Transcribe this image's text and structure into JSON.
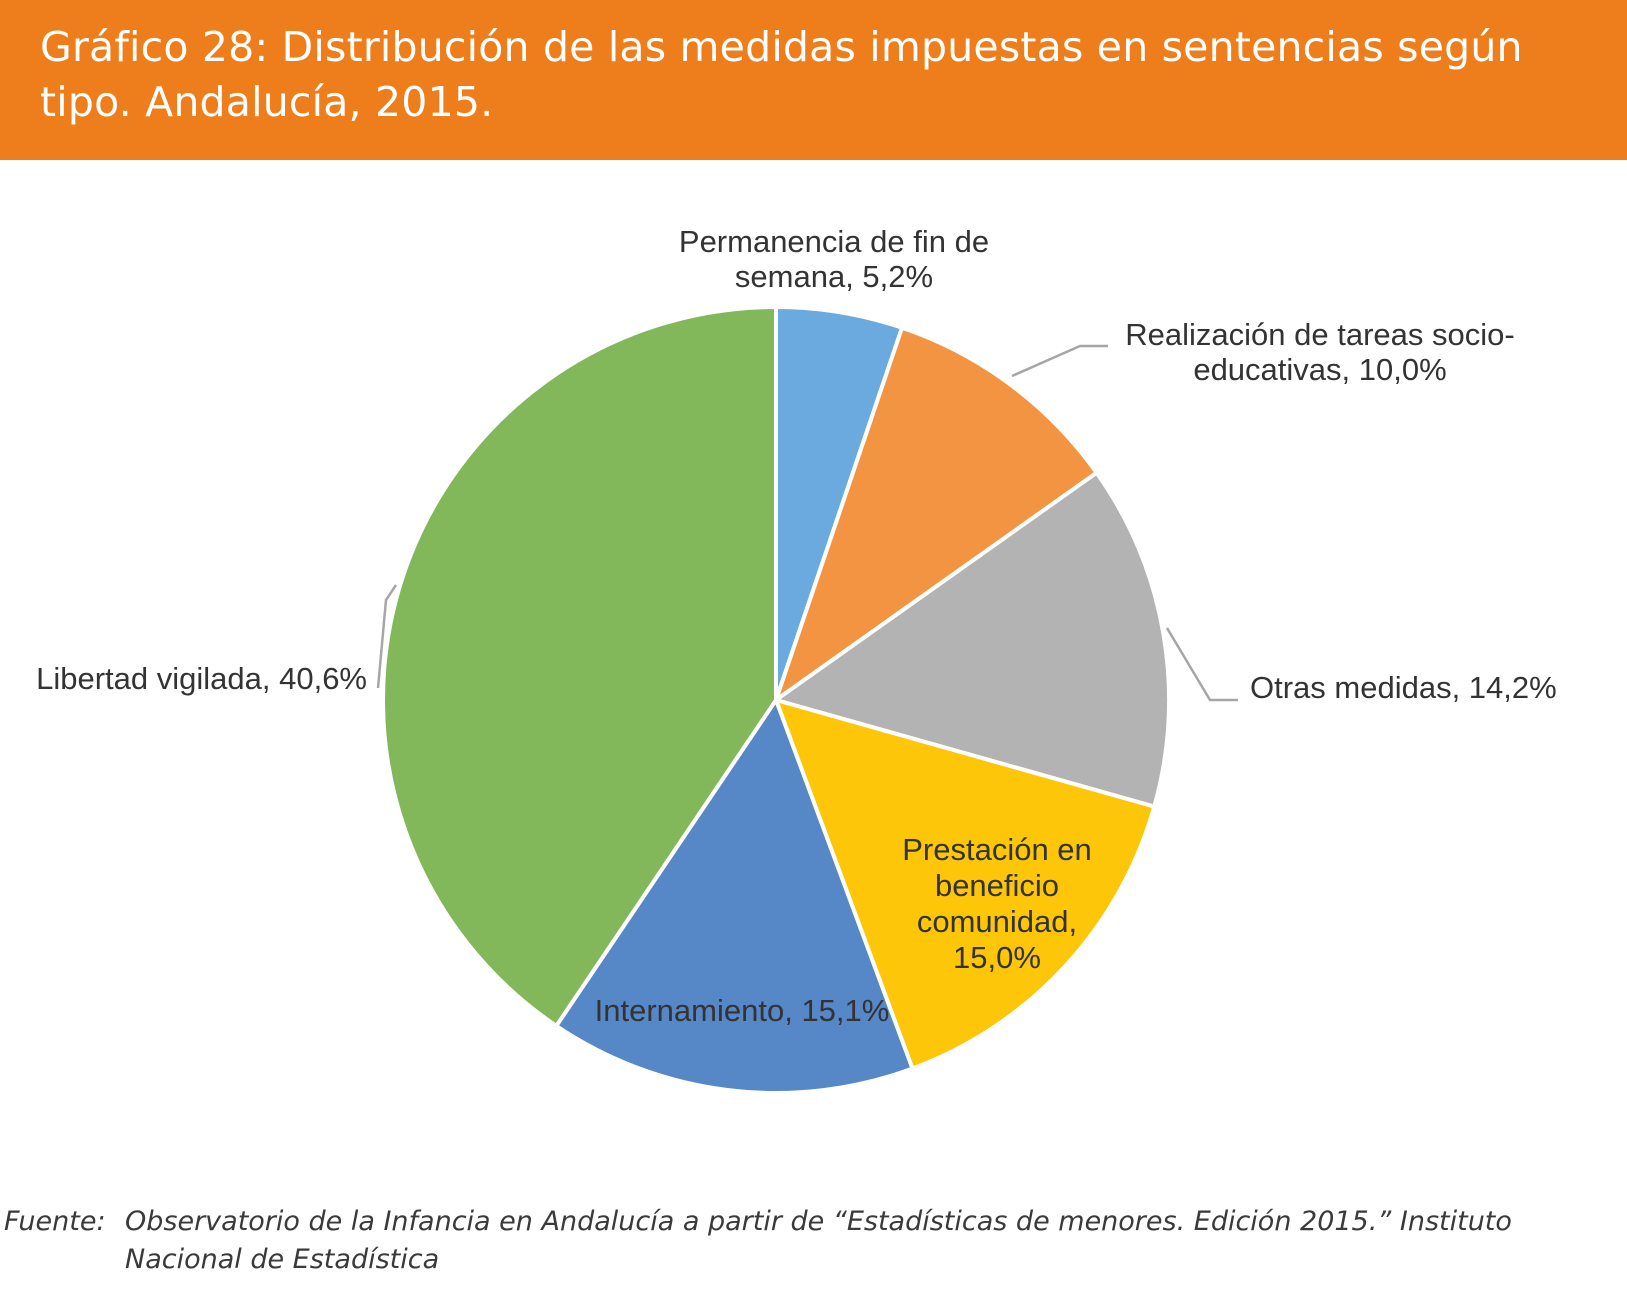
{
  "header": {
    "title": "Gráfico 28: Distribución de las medidas impuestas en sentencias según tipo. Andalucía, 2015."
  },
  "colors": {
    "banner": "#ee7d1b",
    "slice_border": "#ffffff",
    "leader_line": "#a6a6a6"
  },
  "chart_data": {
    "type": "pie",
    "title": "Gráfico 28: Distribución de las medidas impuestas en sentencias según tipo. Andalucía, 2015.",
    "slices": [
      {
        "name": "Permanencia de fin de semana",
        "value": 5.2,
        "label_lines": [
          "Permanencia de fin de",
          "semana, 5,2%"
        ],
        "color": "#6aaadf"
      },
      {
        "name": "Realización de tareas socio-educativas",
        "value": 10.0,
        "label_lines": [
          "Realización de tareas socio-",
          "educativas, 10,0%"
        ],
        "color": "#f29442"
      },
      {
        "name": "Otras medidas",
        "value": 14.2,
        "label_lines": [
          "Otras medidas, 14,2%"
        ],
        "color": "#b3b3b3"
      },
      {
        "name": "Prestación en beneficio comunidad",
        "value": 15.0,
        "label_lines": [
          "Prestación en",
          "beneficio",
          "comunidad,",
          "15,0%"
        ],
        "color": "#fdc609"
      },
      {
        "name": "Internamiento",
        "value": 15.1,
        "label_lines": [
          "Internamiento, 15,1%"
        ],
        "color": "#5687c7"
      },
      {
        "name": "Libertad vigilada",
        "value": 40.6,
        "label_lines": [
          "Libertad vigilada, 40,6%"
        ],
        "color": "#82b85a"
      }
    ]
  },
  "source": {
    "label": "Fuente:",
    "line1": "Observatorio de la Infancia en Andalucía a partir de “Estadísticas de menores. Edición 2015.” Instituto",
    "line2": "Nacional de Estadística"
  }
}
